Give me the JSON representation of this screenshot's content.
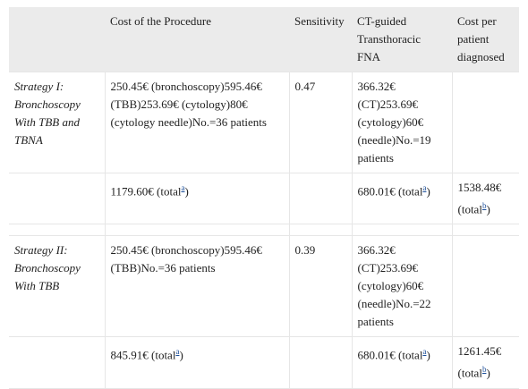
{
  "table": {
    "header": [
      null,
      "Cost of the Procedure",
      "Sensitivity",
      "CT-guided Transthoracic FNA",
      "Cost per patient diagnosed"
    ],
    "groups": [
      {
        "rows": [
          [
            "Strategy I: Bronchoscopy With TBB and TBNA",
            "250.45€ (bronchoscopy)595.46€ (TBB)253.69€ (cytology)80€ (cytology needle)No.=36 patients",
            "0.47",
            "366.32€ (CT)253.69€ (cytology)60€ (needle)No.=19 patients",
            null
          ],
          [
            null,
            {
              "text": "1179.60€ (total",
              "note": "a",
              "after": ")"
            },
            null,
            {
              "text": "680.01€ (total",
              "note": "a",
              "after": ")"
            },
            {
              "text": "1538.48€ (total",
              "note": "b",
              "after": ")"
            }
          ]
        ]
      },
      {
        "rows": [
          [
            "Strategy II: Bronchoscopy With TBB",
            "250.45€ (bronchoscopy)595.46€ (TBB)No.=36 patients",
            "0.39",
            "366.32€ (CT)253.69€ (cytology)60€ (needle)No.=22 patients",
            null
          ],
          [
            null,
            {
              "text": "845.91€ (total",
              "note": "a",
              "after": ")"
            },
            null,
            {
              "text": "680.01€ (total",
              "note": "a",
              "after": ")"
            },
            {
              "text": "1261.45€ (total",
              "note": "b",
              "after": ")"
            }
          ]
        ]
      }
    ]
  }
}
